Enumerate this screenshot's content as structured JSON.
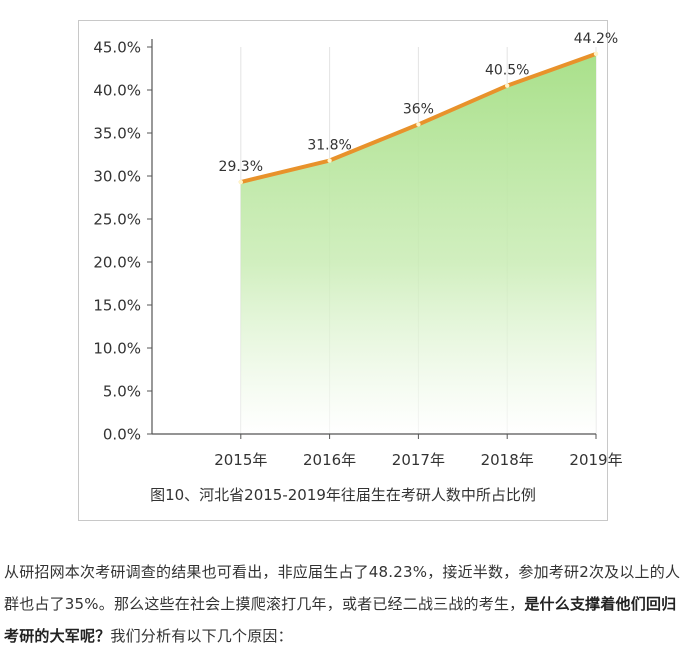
{
  "figure": {
    "caption": "图10、河北省2015-2019年往届生在考研人数中所占比例"
  },
  "chart_data": {
    "type": "area",
    "title": "",
    "xlabel": "",
    "ylabel": "",
    "categories": [
      "2015年",
      "2016年",
      "2017年",
      "2018年",
      "2019年"
    ],
    "values": [
      29.3,
      31.8,
      36,
      40.5,
      44.2
    ],
    "data_labels": [
      "29.3%",
      "31.8%",
      "36%",
      "40.5%",
      "44.2%"
    ],
    "ylim": [
      0,
      45
    ],
    "y_ticks": [
      "0.0%",
      "5.0%",
      "10.0%",
      "15.0%",
      "20.0%",
      "25.0%",
      "30.0%",
      "35.0%",
      "40.0%",
      "45.0%"
    ],
    "grid": true,
    "line_color": "#e8922b",
    "fill_color": "#a9e08a"
  },
  "article": {
    "part1": "从研招网本次考研调查的结果也可看出，非应届生占了48.23%，接近半数，参加考研2次及以上的人群也占了35%。那么这些在社会上摸爬滚打几年，或者已经二战三战的考生，",
    "bold": "是什么支撑着他们回归考研的大军呢？",
    "part2": "我们分析有以下几个原因："
  }
}
